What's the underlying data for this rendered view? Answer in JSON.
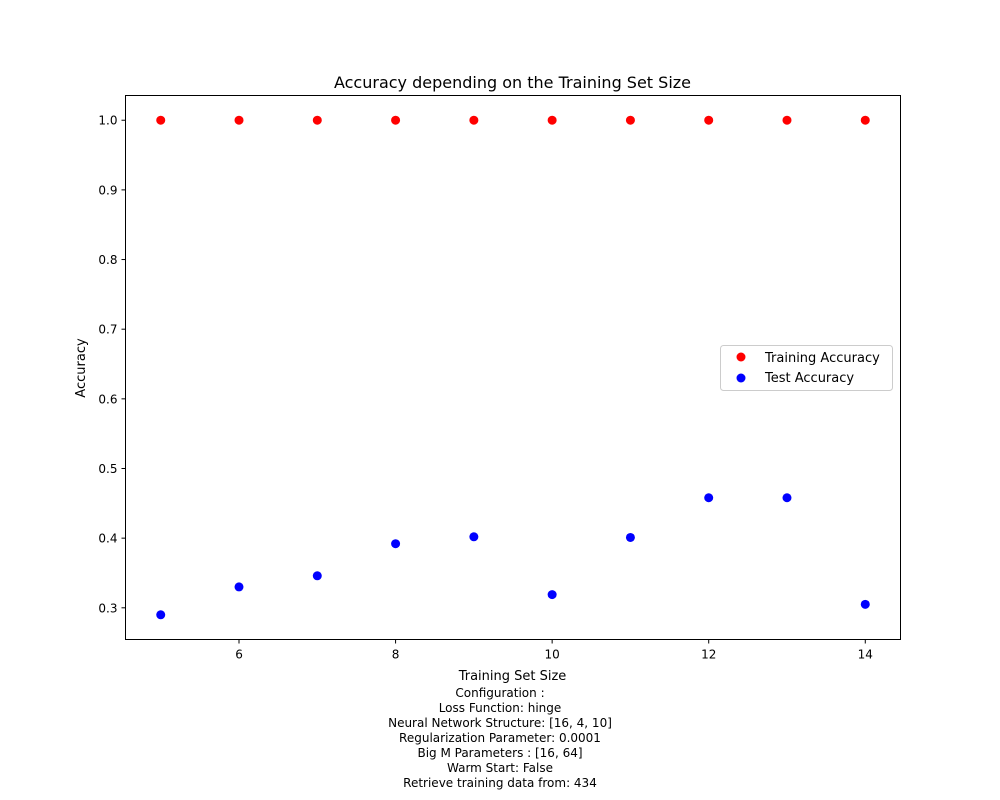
{
  "chart_data": {
    "type": "scatter",
    "title": "Accuracy depending on the Training Set Size",
    "xlabel": "Training Set Size",
    "ylabel": "Accuracy",
    "xlim": [
      4.55,
      14.45
    ],
    "ylim": [
      0.2545,
      1.0355
    ],
    "xticks": [
      6,
      8,
      10,
      12,
      14
    ],
    "yticks": [
      0.3,
      0.4,
      0.5,
      0.6,
      0.7,
      0.8,
      0.9,
      1.0
    ],
    "xtick_labels": [
      "6",
      "8",
      "10",
      "12",
      "14"
    ],
    "ytick_labels": [
      "0.3",
      "0.4",
      "0.5",
      "0.6",
      "0.7",
      "0.8",
      "0.9",
      "1.0"
    ],
    "grid": false,
    "legend_position": "center-right",
    "series": [
      {
        "name": "Training Accuracy",
        "color": "#ff0000",
        "x": [
          5,
          6,
          7,
          8,
          9,
          10,
          11,
          12,
          13,
          14
        ],
        "y": [
          1.0,
          1.0,
          1.0,
          1.0,
          1.0,
          1.0,
          1.0,
          1.0,
          1.0,
          1.0
        ]
      },
      {
        "name": "Test Accuracy",
        "color": "#0000ff",
        "x": [
          5,
          6,
          7,
          8,
          9,
          10,
          11,
          12,
          13,
          14
        ],
        "y": [
          0.29,
          0.33,
          0.346,
          0.392,
          0.402,
          0.319,
          0.401,
          0.458,
          0.458,
          0.305
        ]
      }
    ]
  },
  "caption": {
    "lines": [
      "Configuration :",
      "Loss Function: hinge",
      "Neural Network Structure: [16, 4, 10]",
      "Regularization Parameter: 0.0001",
      "Big M Parameters : [16, 64]",
      "Warm Start: False",
      "Retrieve training data from: 434"
    ]
  }
}
